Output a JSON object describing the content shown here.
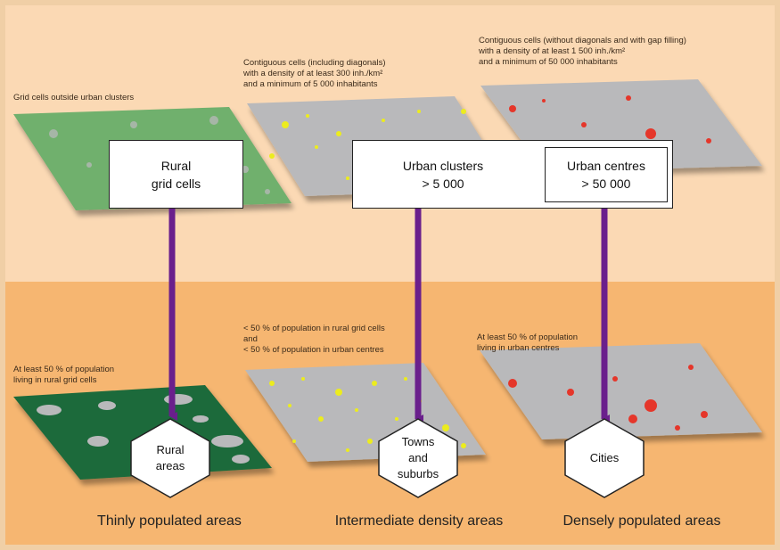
{
  "top_labels": {
    "grid_outside": [
      "Grid cells outside urban clusters"
    ],
    "contiguous_diag": [
      "Contiguous cells (including diagonals)",
      "with a density of at least 300 inh./km²",
      "and a minimum of 5 000 inhabitants"
    ],
    "contiguous_nodiag": [
      "Contiguous cells (without diagonals and with gap filling)",
      "with a density of at least 1 500 inh./km²",
      "and a minimum of 50 000 inhabitants"
    ]
  },
  "boxes": {
    "rural": [
      "Rural",
      "grid cells"
    ],
    "urban_clusters": [
      "Urban clusters",
      "> 5 000"
    ],
    "urban_centres": [
      "Urban centres",
      "> 50 000"
    ]
  },
  "bottom_labels": {
    "rural_rule": [
      "At least 50 % of population",
      "living in rural grid cells"
    ],
    "intermediate_rule": [
      "< 50 % of population in rural grid cells",
      "and",
      "< 50 % of population in urban centres"
    ],
    "dense_rule": [
      "At least 50 % of population",
      "living in urban centres"
    ]
  },
  "hexagons": {
    "rural_areas": [
      "Rural",
      "areas"
    ],
    "towns": [
      "Towns",
      "and",
      "suburbs"
    ],
    "cities": [
      "Cities"
    ]
  },
  "categories": {
    "thin": "Thinly populated areas",
    "intermediate": "Intermediate density areas",
    "dense": "Densely populated areas"
  },
  "colors": {
    "band_top": "#fbd9b4",
    "band_bottom": "#f6b671",
    "frame": "#f0cfa6",
    "rural_green": "#6fb06d",
    "dark_green": "#1f6b3b",
    "map_grey": "#b9b9bb",
    "yellow": "#ecec1e",
    "red": "#e5362a",
    "arrow": "#6a1f8c"
  }
}
